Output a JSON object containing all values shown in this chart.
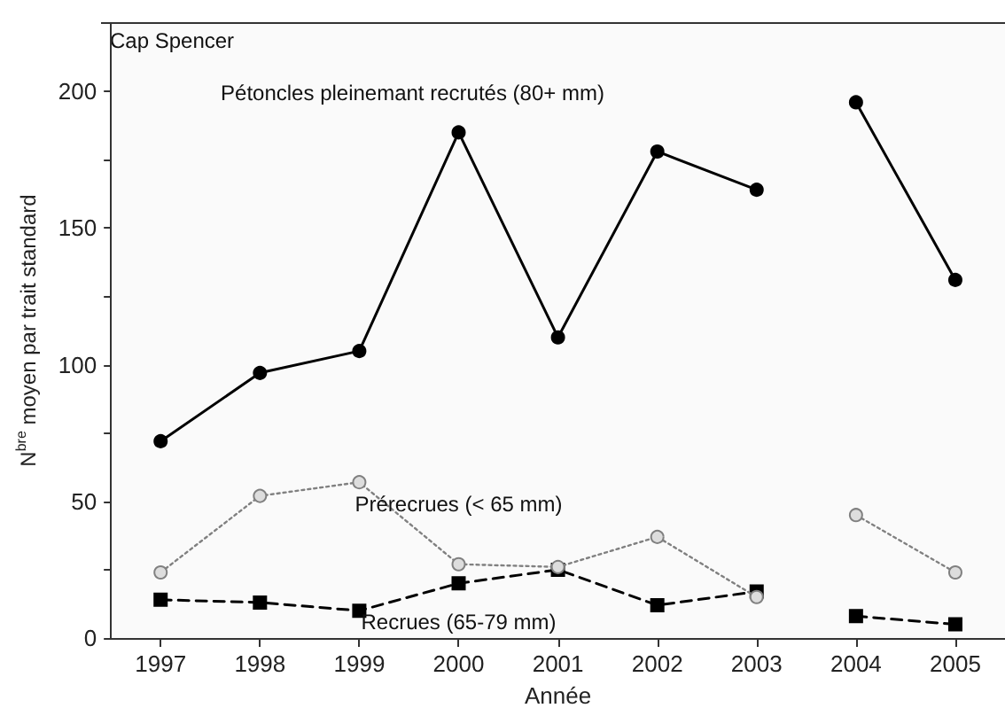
{
  "chart_data": {
    "type": "line",
    "title": "Cap Spencer",
    "xlabel": "Année",
    "ylabel": "N$^{bre}$ moyen par trait standard",
    "categories": [
      "1997",
      "1998",
      "1999",
      "2000",
      "2001",
      "2002",
      "2003",
      "2004",
      "2005"
    ],
    "series": [
      {
        "name": "Pétoncles pleinemant recrutés (80+ mm)",
        "color": "#000000",
        "marker": "circle",
        "line_style": "solid",
        "values": [
          72,
          97,
          105,
          185,
          110,
          178,
          164,
          null,
          null
        ]
      },
      {
        "color": "#000000",
        "marker": "circle",
        "line_style": "solid",
        "values": [
          null,
          null,
          null,
          null,
          null,
          null,
          null,
          196,
          131
        ]
      },
      {
        "name": "Prérecrues (< 65 mm)",
        "color": "#808080",
        "marker": "circle",
        "line_style": "dotted",
        "values": [
          24,
          52,
          57,
          27,
          26,
          37,
          15,
          null,
          null
        ]
      },
      {
        "color": "#808080",
        "marker": "circle",
        "line_style": "dotted",
        "values": [
          null,
          null,
          null,
          null,
          null,
          null,
          null,
          45,
          24
        ]
      },
      {
        "name": "Recrues (65-79 mm)",
        "color": "#000000",
        "marker": "square",
        "line_style": "dashed",
        "values": [
          14,
          13,
          10,
          20,
          25,
          12,
          17,
          null,
          null
        ]
      },
      {
        "color": "#000000",
        "marker": "square",
        "line_style": "dashed",
        "values": [
          null,
          null,
          null,
          null,
          null,
          null,
          null,
          8,
          5
        ]
      }
    ],
    "ylim": [
      0,
      225
    ],
    "yticks": [
      0,
      {
        "value": 25,
        "label": null
      },
      50,
      {
        "value": 75,
        "label": null
      },
      100,
      {
        "value": 125,
        "label": null
      },
      150,
      {
        "value": 175,
        "label": null
      },
      200
    ],
    "grid": false,
    "legend": false
  }
}
